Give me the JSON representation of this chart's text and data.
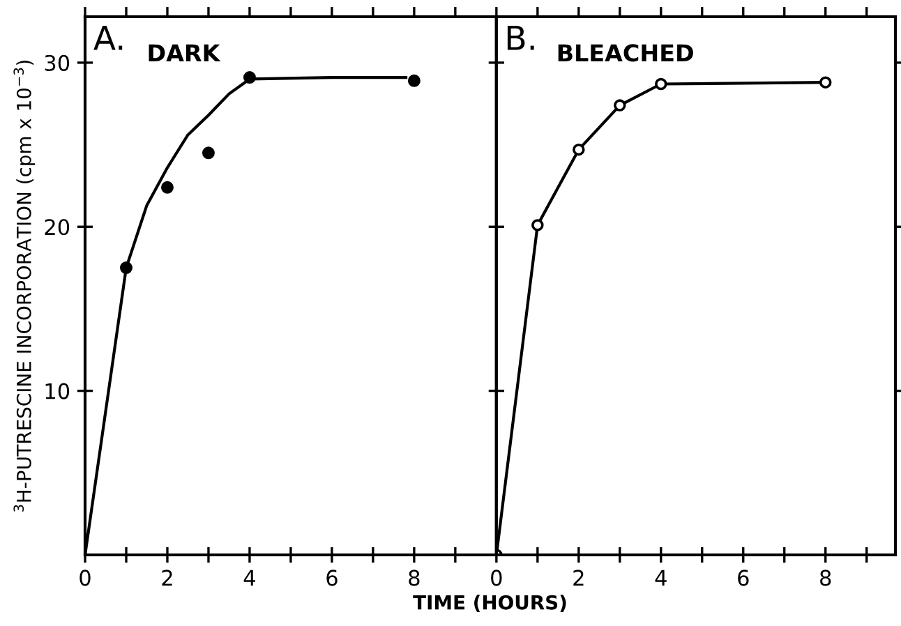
{
  "chart_data": [
    {
      "type": "scatter",
      "ylabel": "$^{3}$H-PUTRESCINE INCORPORATION (cpm x 10$^{−3}$)",
      "xlabel": "TIME (HOURS)",
      "annotations": [
        "A.",
        "DARK"
      ],
      "marker": "circle",
      "grid": false,
      "legend": false,
      "xlim": [
        0,
        10
      ],
      "ylim": [
        0,
        32.8
      ],
      "xticks": [
        0,
        {
          "value": 1,
          "label": null
        },
        2,
        {
          "value": 3,
          "label": null
        },
        4,
        {
          "value": 5,
          "label": null
        },
        6,
        {
          "value": 7,
          "label": null
        },
        8,
        {
          "value": 9,
          "label": null
        }
      ],
      "yticks": [
        10,
        20,
        30
      ],
      "series": [
        {
          "color": "#000000",
          "x": [
            1,
            2,
            3,
            4,
            8
          ],
          "values": [
            17.5,
            22.4,
            24.5,
            29.1,
            28.9
          ]
        },
        {
          "type": "line",
          "color": "#000000",
          "marker": "none",
          "x": [
            0,
            1,
            1.5,
            2,
            2.5,
            3,
            3.5,
            4,
            6,
            7.8
          ],
          "values": [
            0,
            17.5,
            21.3,
            23.6,
            25.6,
            26.8,
            28.1,
            29.0,
            29.1,
            29.1
          ]
        }
      ]
    },
    {
      "type": "line",
      "annotations": [
        "B.",
        "BLEACHED"
      ],
      "marker": "circle",
      "grid": false,
      "legend": false,
      "tick_labels": "x",
      "xlim": [
        0,
        9.7
      ],
      "ylim": [
        0,
        32.8
      ],
      "xticks": [
        0,
        {
          "value": 1,
          "label": null
        },
        2,
        {
          "value": 3,
          "label": null
        },
        4,
        {
          "value": 5,
          "label": null
        },
        6,
        {
          "value": 7,
          "label": null
        },
        8,
        {
          "value": 9,
          "label": null
        }
      ],
      "yticks": [
        10,
        20,
        30
      ],
      "series": [
        {
          "color": "#000000",
          "x": [
            0,
            1,
            2,
            3,
            4,
            8
          ],
          "values": [
            0,
            20.1,
            24.7,
            27.4,
            28.7,
            28.8
          ]
        }
      ]
    }
  ]
}
